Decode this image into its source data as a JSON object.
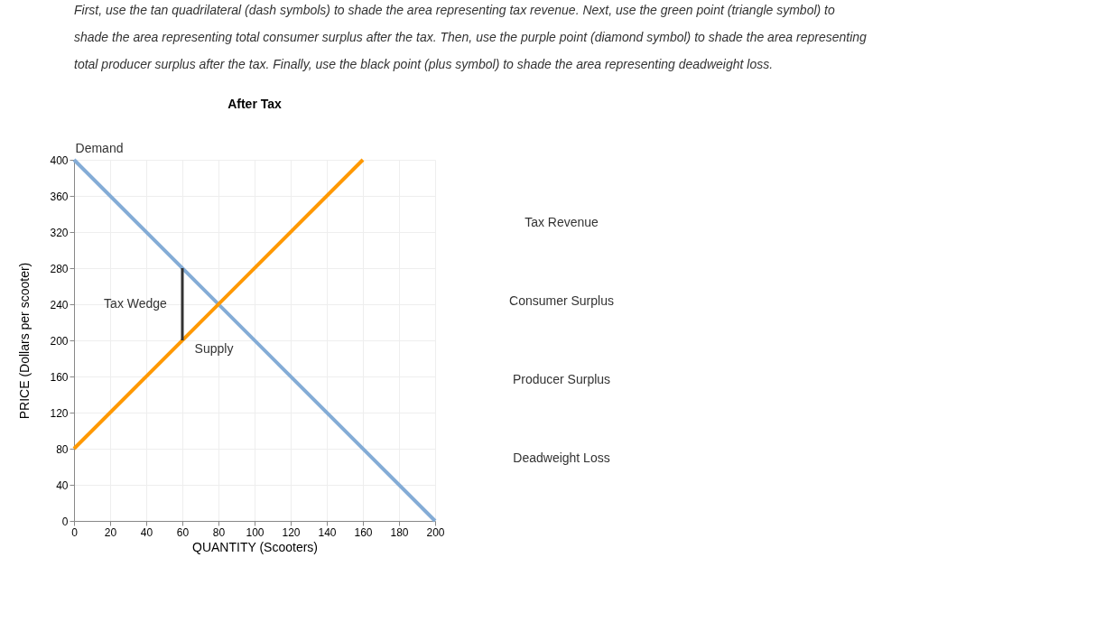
{
  "chart_data": {
    "type": "line",
    "title": "After Tax",
    "xlabel": "QUANTITY (Scooters)",
    "ylabel": "PRICE (Dollars per scooter)",
    "series": [
      {
        "name": "Demand",
        "color": "#84acd6",
        "x": [
          0,
          200
        ],
        "values": [
          400,
          0
        ]
      },
      {
        "name": "Supply",
        "color": "#ff9900",
        "x": [
          0,
          160
        ],
        "values": [
          80,
          400
        ]
      },
      {
        "name": "Tax Wedge",
        "color": "#333333",
        "x": [
          60,
          60
        ],
        "values": [
          200,
          280
        ]
      }
    ],
    "xlim": [
      0,
      200
    ],
    "xticks": [
      0,
      20,
      40,
      60,
      80,
      100,
      120,
      140,
      160,
      180,
      200
    ],
    "ylim": [
      0,
      400
    ],
    "yticks": [
      0,
      40,
      80,
      120,
      160,
      200,
      240,
      280,
      320,
      360,
      400
    ],
    "grid": true,
    "marker": "none",
    "line_style": "solid",
    "annotations": [
      "First, use the tan quadrilateral (dash symbols) to shade the area representing tax revenue. Next, use the green point (triangle symbol) to shade the area representing total consumer surplus after the tax. Then, use the purple point (diamond symbol) to shade the area representing total producer surplus after the tax. Finally, use the black point (plus symbol) to shade the area representing deadweight loss.",
      "Tax Revenue",
      "Consumer Surplus",
      "Producer Surplus",
      "Deadweight Loss"
    ]
  }
}
